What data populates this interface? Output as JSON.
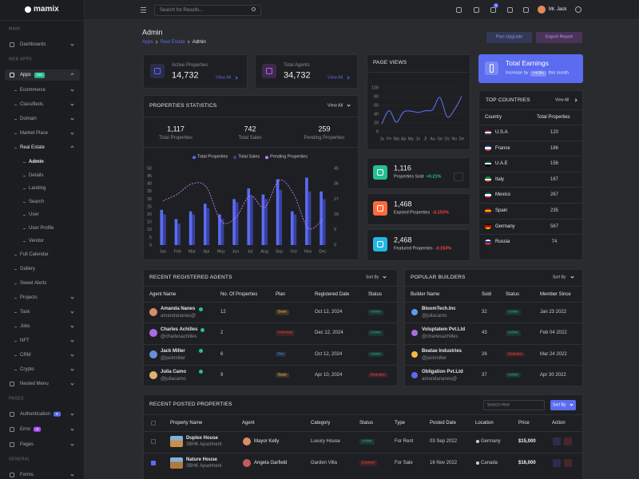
{
  "header": {
    "brand": "mamix",
    "search_placeholder": "Search for Results...",
    "notification_count": "5",
    "user_name": "Mr. Jack"
  },
  "sidebar": {
    "sections": [
      {
        "title": "MAIN",
        "items": [
          {
            "label": "Dashboards",
            "submenu": true
          }
        ]
      },
      {
        "title": "WEB APPS",
        "items": [
          {
            "label": "Apps",
            "badge": "Hot",
            "badge_color": "#26bf94",
            "active": true,
            "submenu": true,
            "children": [
              {
                "label": "Ecommerce",
                "submenu": true
              },
              {
                "label": "Classifieds",
                "submenu": true
              },
              {
                "label": "Domain",
                "submenu": true
              },
              {
                "label": "Market Place",
                "submenu": true
              },
              {
                "label": "Real Estate",
                "active": true,
                "submenu": true,
                "children": [
                  {
                    "label": "Admin",
                    "active": true
                  },
                  {
                    "label": "Details"
                  },
                  {
                    "label": "Landing"
                  },
                  {
                    "label": "Search"
                  },
                  {
                    "label": "User"
                  },
                  {
                    "label": "User Profile"
                  },
                  {
                    "label": "Vendor"
                  }
                ]
              },
              {
                "label": "Full Calendar"
              },
              {
                "label": "Gallery"
              },
              {
                "label": "Sweet Alerts"
              },
              {
                "label": "Projects",
                "submenu": true
              },
              {
                "label": "Task",
                "submenu": true
              },
              {
                "label": "Jobs",
                "submenu": true
              },
              {
                "label": "NFT",
                "submenu": true
              },
              {
                "label": "CRM",
                "submenu": true
              },
              {
                "label": "Crypto",
                "submenu": true
              }
            ]
          },
          {
            "label": "Nested Menu",
            "submenu": true
          }
        ]
      },
      {
        "title": "PAGES",
        "items": [
          {
            "label": "Authentication",
            "badge": "6",
            "badge_color": "#5b6cf0",
            "submenu": true
          },
          {
            "label": "Error",
            "badge": "5",
            "badge_color": "#a855f7",
            "submenu": true
          },
          {
            "label": "Pages",
            "submenu": true
          }
        ]
      },
      {
        "title": "GENERAL",
        "items": [
          {
            "label": "Forms",
            "submenu": true
          }
        ]
      }
    ]
  },
  "page": {
    "title": "Admin",
    "breadcrumb": [
      "Apps",
      "Real Estate",
      "Admin"
    ],
    "actions": [
      "Plan Upgrade",
      "Export Report"
    ]
  },
  "stat_cards": [
    {
      "label": "Active Properties",
      "value": "14,732",
      "link": "View All",
      "color": "#5b6cf0"
    },
    {
      "label": "Total Agents",
      "value": "34,732",
      "link": "View All",
      "color": "#c05cf5"
    }
  ],
  "properties_statistics": {
    "title": "PROPERTIES STATISTICS",
    "link": "View All",
    "summary": [
      {
        "value": "1,117",
        "label": "Total Properties"
      },
      {
        "value": "742",
        "label": "Total Sales"
      },
      {
        "value": "259",
        "label": "Pending Properties"
      }
    ],
    "chart": {
      "type": "bar",
      "categories": [
        "Jan",
        "Feb",
        "Mar",
        "Apr",
        "May",
        "Jun",
        "Jul",
        "Aug",
        "Sep",
        "Oct",
        "Nov",
        "Dec"
      ],
      "ylim": [
        0,
        50
      ],
      "yticks": [
        0,
        5,
        10,
        15,
        20,
        25,
        30,
        35,
        40,
        45,
        50
      ],
      "y2lim": [
        0,
        45
      ],
      "y2ticks": [
        0,
        9,
        18,
        27,
        36,
        45
      ],
      "series": [
        {
          "name": "Total Properties",
          "color": "#5b6cf0",
          "values": [
            23,
            17,
            22,
            27,
            20,
            30,
            37,
            33,
            43,
            22,
            44,
            35
          ]
        },
        {
          "name": "Total Sales",
          "color": "#3a41a0",
          "values": [
            20,
            14,
            20,
            24,
            17,
            28,
            32,
            30,
            36,
            20,
            35,
            30
          ]
        },
        {
          "name": "Pending Properties",
          "color": "#c77dff",
          "type": "line",
          "axis": "y2",
          "values": [
            26,
            30,
            36,
            34,
            14,
            16,
            29,
            22,
            38,
            30,
            10,
            15
          ]
        }
      ]
    }
  },
  "page_views": {
    "title": "PAGE VIEWS",
    "chart": {
      "type": "line",
      "categories": [
        "Ja",
        "Fe",
        "Ma",
        "Ap",
        "My",
        "Jn",
        "Jl",
        "Au",
        "Se",
        "Oc",
        "No",
        "De"
      ],
      "values": [
        18,
        48,
        22,
        45,
        47,
        44,
        48,
        50,
        78,
        34,
        50,
        80
      ],
      "color": "#5b6cf0",
      "ylim": [
        0,
        100
      ],
      "yticks": [
        0,
        20,
        40,
        60,
        80,
        100
      ],
      "grid": true
    }
  },
  "total_earnings": {
    "title": "Total Earnings",
    "text": "Increase by",
    "change": "+4.3%",
    "suffix": "this month"
  },
  "kpis": [
    {
      "value": "1,116",
      "label": "Properties Sold",
      "change": "+0.21%",
      "change_color": "#26bf94",
      "color": "#26bf94"
    },
    {
      "value": "1,468",
      "label": "Expired Properties",
      "change": "-0.153%",
      "change_color": "#fb4242",
      "color": "#ff6a3d"
    },
    {
      "value": "2,468",
      "label": "Featured Properties",
      "change": "-0.153%",
      "change_color": "#fb4242",
      "color": "#23b7e5"
    }
  ],
  "top_countries": {
    "title": "TOP COUNTRIES",
    "link": "View All",
    "columns": [
      "Country",
      "Total Properties"
    ],
    "rows": [
      [
        "U.S.A",
        "120"
      ],
      [
        "France",
        "186"
      ],
      [
        "U.A.E",
        "156"
      ],
      [
        "Italy",
        "167"
      ],
      [
        "Mexico",
        "267"
      ],
      [
        "Spain",
        "235"
      ],
      [
        "Germany",
        "567"
      ],
      [
        "Russia",
        "74"
      ]
    ]
  },
  "agents": {
    "title": "RECENT REGISTERED AGENTS",
    "sort": "Sort By",
    "columns": [
      "Agent Name",
      "No. Of Properties",
      "Plan",
      "Registered Date",
      "Status"
    ],
    "rows": [
      {
        "name": "Amanda Nanes",
        "handle": "amandananes@",
        "properties": "12",
        "plan": {
          "label": "Basic",
          "color": "#f5b849"
        },
        "date": "Oct 12, 2024",
        "status": {
          "label": "Active",
          "color": "#26bf94"
        }
      },
      {
        "name": "Charles Achilles",
        "handle": "@charlesachilles",
        "properties": "2",
        "plan": {
          "label": "Premium",
          "color": "#fb4242"
        },
        "date": "Dec 12, 2024",
        "status": {
          "label": "Active",
          "color": "#26bf94"
        }
      },
      {
        "name": "Jack Miller",
        "handle": "@jackmiller",
        "properties": "6",
        "plan": {
          "label": "Pro",
          "color": "#5b9cf0"
        },
        "date": "Oct 12, 2024",
        "status": {
          "label": "Active",
          "color": "#26bf94"
        }
      },
      {
        "name": "Julia Camo",
        "handle": "@juliacamo",
        "properties": "9",
        "plan": {
          "label": "Basic",
          "color": "#f5b849"
        },
        "date": "Apr 10, 2024",
        "status": {
          "label": "Deactive",
          "color": "#fb4242"
        }
      }
    ]
  },
  "builders": {
    "title": "POPULAR BUILDERS",
    "sort": "Sort By",
    "columns": [
      "Builder Name",
      "Sold",
      "Status",
      "Member Since"
    ],
    "rows": [
      {
        "name": "BloomTech.Inc",
        "handle": "@juliacamo",
        "sold": "32",
        "status": {
          "label": "Active",
          "color": "#26bf94"
        },
        "since": "Jan 23 2022"
      },
      {
        "name": "Voluptatem Pvt.Ltd",
        "handle": "@charlesachilles",
        "sold": "43",
        "status": {
          "label": "Active",
          "color": "#26bf94"
        },
        "since": "Feb 04 2022"
      },
      {
        "name": "Beatae Industries",
        "handle": "@jackmiller",
        "sold": "26",
        "status": {
          "label": "Deactive",
          "color": "#fb4242"
        },
        "since": "Mar 24 2022"
      },
      {
        "name": "Obligation Pvt.Ltd",
        "handle": "amandananes@",
        "sold": "37",
        "status": {
          "label": "Active",
          "color": "#26bf94"
        },
        "since": "Apr 30 2022"
      }
    ]
  },
  "recent_properties": {
    "title": "RECENT POSTED PROPERTIES",
    "search_placeholder": "Search Here",
    "sort": "Sort By",
    "columns": [
      "Property Name",
      "Agent",
      "Category",
      "Status",
      "Type",
      "Posted Date",
      "Location",
      "Price",
      "Action"
    ],
    "rows": [
      {
        "name": "Duplex House",
        "detail": "3BHK Apartment",
        "agent": "Mayor Kelly",
        "category": "Luxury House",
        "status": {
          "label": "Active",
          "color": "#26bf94"
        },
        "type": "For Rent",
        "date": "03 Sep 2022",
        "location": "Germany",
        "price": "$15,000",
        "checked": false
      },
      {
        "name": "Nature House",
        "detail": "3BHK Apartment",
        "agent": "Angela Garfield",
        "category": "Garden Villa",
        "status": {
          "label": "Expired",
          "color": "#fb4242"
        },
        "type": "For Sale",
        "date": "16 Nov 2022",
        "location": "Canada",
        "price": "$16,000",
        "checked": true
      }
    ]
  }
}
